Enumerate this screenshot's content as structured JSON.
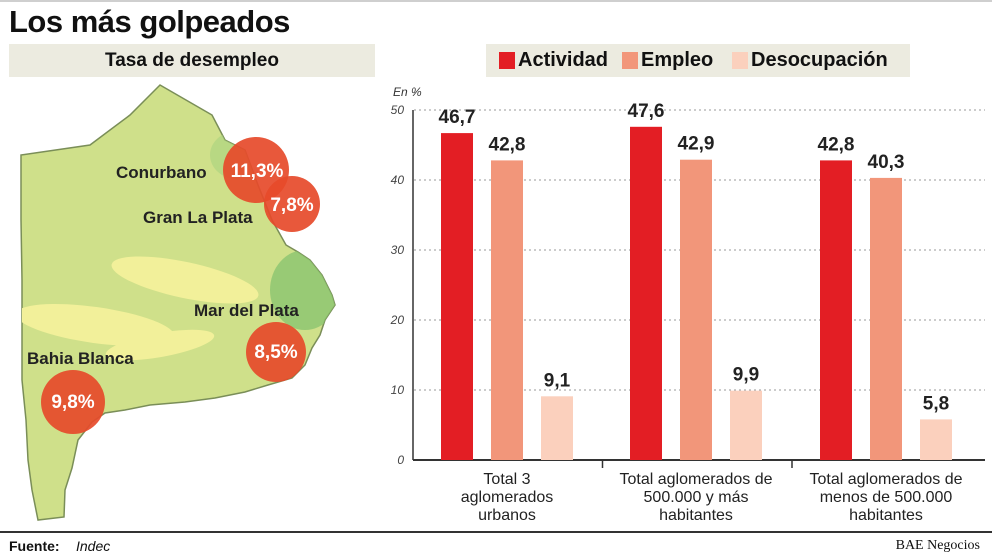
{
  "title": "Los más golpeados",
  "map": {
    "subtitle": "Tasa de desempleo",
    "regions": [
      {
        "name": "Conurbano",
        "rate": "11,3%"
      },
      {
        "name": "Gran La Plata",
        "rate": "7,8%"
      },
      {
        "name": "Mar del Plata",
        "rate": "8,5%"
      },
      {
        "name": "Bahia Blanca",
        "rate": "9,8%"
      }
    ]
  },
  "chart_data": {
    "type": "bar",
    "ylabel": "En %",
    "ylim": [
      0,
      50
    ],
    "yticks": [
      0,
      10,
      20,
      30,
      40,
      50
    ],
    "categories": [
      [
        "Total 3",
        "aglomerados",
        "urbanos"
      ],
      [
        "Total aglomerados de",
        "500.000 y más",
        "habitantes"
      ],
      [
        "Total aglomerados de",
        "menos de 500.000",
        "habitantes"
      ]
    ],
    "series": [
      {
        "name": "Actividad",
        "color": "#e31e24",
        "values": [
          46.7,
          47.6,
          42.8
        ],
        "labels": [
          "46,7",
          "47,6",
          "42,8"
        ]
      },
      {
        "name": "Empleo",
        "color": "#f2967a",
        "values": [
          42.8,
          42.9,
          40.3
        ],
        "labels": [
          "42,8",
          "42,9",
          "40,3"
        ]
      },
      {
        "name": "Desocupación",
        "color": "#fbd0bd",
        "values": [
          9.1,
          9.9,
          5.8
        ],
        "labels": [
          "9,1",
          "9,9",
          "5,8"
        ]
      }
    ]
  },
  "footer": {
    "label": "Fuente:",
    "source": "Indec",
    "credit": "BAE Negocios"
  }
}
